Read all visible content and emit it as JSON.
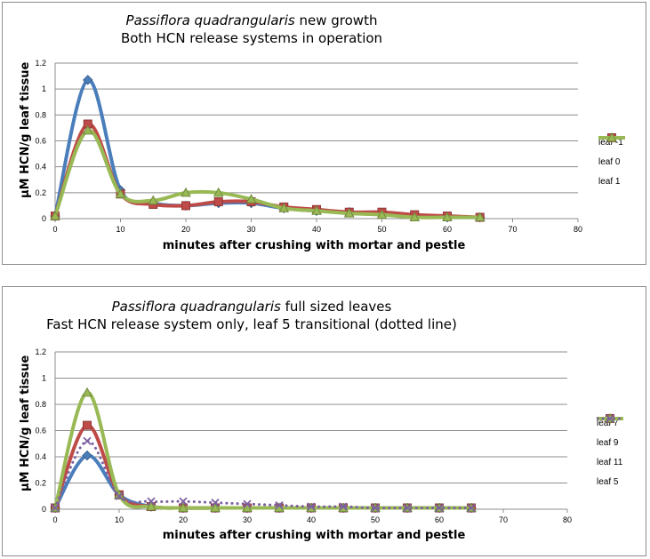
{
  "chart_data": [
    {
      "type": "line",
      "title_italic": "Passiflora quadrangularis",
      "title_rest": " new growth",
      "subtitle": "Both HCN release systems in operation",
      "xlabel": "minutes after crushing with mortar and pestle",
      "ylabel": "µM HCN/g leaf tissue",
      "xlim": [
        0,
        80
      ],
      "ylim": [
        0,
        1.2
      ],
      "x_ticks": [
        0,
        10,
        20,
        30,
        40,
        50,
        60,
        70,
        80
      ],
      "y_ticks": [
        0,
        0.2,
        0.4,
        0.6,
        0.8,
        1,
        1.2
      ],
      "y_tick_labels": [
        "0",
        "0.2",
        "0.4",
        "0.6",
        "0.8",
        "1",
        "1.2"
      ],
      "grid": "horizontal",
      "legend_position": "right",
      "x": [
        0,
        5,
        10,
        15,
        20,
        25,
        30,
        35,
        40,
        45,
        50,
        55,
        60,
        65
      ],
      "series": [
        {
          "name": "leaf -1",
          "color": "#4a7ebb",
          "marker": "diamond",
          "style": "solid",
          "values": [
            0.02,
            1.07,
            0.22,
            0.12,
            0.1,
            0.12,
            0.12,
            0.08,
            0.06,
            0.05,
            0.04,
            0.02,
            0.01,
            0.01
          ]
        },
        {
          "name": "leaf 0",
          "color": "#be4b48",
          "marker": "square",
          "style": "solid",
          "values": [
            0.02,
            0.73,
            0.19,
            0.11,
            0.1,
            0.13,
            0.13,
            0.09,
            0.07,
            0.05,
            0.05,
            0.03,
            0.02,
            0.01
          ]
        },
        {
          "name": "leaf 1",
          "color": "#98b954",
          "marker": "triangle",
          "style": "solid",
          "values": [
            0.02,
            0.68,
            0.19,
            0.14,
            0.2,
            0.2,
            0.15,
            0.08,
            0.06,
            0.04,
            0.03,
            0.01,
            0.01,
            0.01
          ]
        }
      ]
    },
    {
      "type": "line",
      "title_italic": "Passiflora quadrangularis",
      "title_rest": " full sized leaves",
      "subtitle": "Fast HCN release system only, leaf 5 transitional (dotted line)",
      "xlabel": "minutes after crushing with mortar and pestle",
      "ylabel": "µM HCN/g leaf tissue",
      "xlim": [
        0,
        80
      ],
      "ylim": [
        0,
        1.2
      ],
      "x_ticks": [
        0,
        10,
        20,
        30,
        40,
        50,
        60,
        70,
        80
      ],
      "y_ticks": [
        0,
        0.2,
        0.4,
        0.6,
        0.8,
        1,
        1.2
      ],
      "y_tick_labels": [
        "0",
        "0.2",
        "0.4",
        "0.6",
        "0.8",
        "1",
        "1.2"
      ],
      "grid": "horizontal",
      "legend_position": "right",
      "x": [
        0,
        5,
        10,
        15,
        20,
        25,
        30,
        35,
        40,
        45,
        50,
        55,
        60,
        65
      ],
      "series": [
        {
          "name": "leaf 7",
          "color": "#4a7ebb",
          "marker": "diamond",
          "style": "solid",
          "values": [
            0.01,
            0.41,
            0.11,
            0.02,
            0.01,
            0.01,
            0.01,
            0.01,
            0.01,
            0.01,
            0.01,
            0.01,
            0.01,
            0.01
          ]
        },
        {
          "name": "leaf 9",
          "color": "#be4b48",
          "marker": "square",
          "style": "solid",
          "values": [
            0.01,
            0.64,
            0.11,
            0.02,
            0.01,
            0.01,
            0.01,
            0.01,
            0.01,
            0.01,
            0.01,
            0.01,
            0.01,
            0.01
          ]
        },
        {
          "name": "leaf 11",
          "color": "#98b954",
          "marker": "triangle",
          "style": "solid",
          "values": [
            0.01,
            0.89,
            0.11,
            0.02,
            0.01,
            0.01,
            0.01,
            0.01,
            0.01,
            0.01,
            0.01,
            0.01,
            0.01,
            0.01
          ]
        },
        {
          "name": "leaf 5",
          "color": "#7d60a0",
          "marker": "x",
          "style": "dotted",
          "values": [
            0.01,
            0.52,
            0.1,
            0.06,
            0.06,
            0.05,
            0.04,
            0.03,
            0.02,
            0.02,
            0.01,
            0.01,
            0.01,
            0.01
          ]
        }
      ]
    }
  ]
}
